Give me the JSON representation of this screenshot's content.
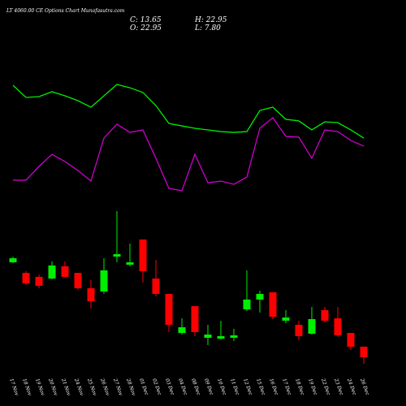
{
  "chart_data": {
    "type": "candlestick",
    "title": "LT 4060.00 CE Options Chart Munafasutra.com",
    "info": [
      "C: 13.65",
      "H: 22.95",
      "O: 22.95",
      "L: 7.80"
    ],
    "categories": [
      "17 Nov",
      "18 Nov",
      "19 Nov",
      "20 Nov",
      "21 Nov",
      "24 Nov",
      "25 Nov",
      "26 Nov",
      "27 Nov",
      "28 Nov",
      "01 Dec",
      "02 Dec",
      "03 Dec",
      "04 Dec",
      "08 Dec",
      "09 Dec",
      "10 Dec",
      "11 Dec",
      "12 Dec",
      "15 Dec",
      "16 Dec",
      "17 Dec",
      "18 Dec",
      "19 Dec",
      "22 Dec",
      "23 Dec",
      "24 Dec",
      "26 Dec"
    ],
    "open": [
      97.2,
      87.9,
      84.4,
      82.9,
      93.7,
      87.9,
      74.4,
      71.5,
      102.2,
      95.1,
      117.3,
      82.9,
      69.4,
      35.0,
      58.6,
      30.7,
      30.0,
      30.7,
      55.8,
      64.4,
      70.8,
      45.8,
      42.2,
      34.3,
      55.1,
      47.9,
      35.0,
      22.95
    ],
    "high": [
      102.2,
      89.4,
      86.5,
      98.0,
      98.0,
      87.9,
      81.5,
      100.8,
      142.3,
      113.7,
      117.3,
      99.4,
      69.4,
      47.9,
      58.6,
      42.2,
      45.8,
      38.6,
      90.1,
      72.2,
      70.8,
      55.1,
      45.8,
      57.9,
      57.9,
      57.9,
      35.0,
      22.95
    ],
    "low": [
      96.5,
      77.2,
      74.4,
      82.2,
      83.7,
      72.9,
      56.5,
      69.4,
      97.2,
      93.7,
      79.4,
      67.2,
      35.8,
      33.6,
      32.2,
      24.3,
      29.3,
      27.9,
      54.3,
      52.9,
      47.2,
      43.6,
      28.6,
      33.6,
      44.3,
      31.5,
      20.0,
      7.8
    ],
    "close": [
      100.8,
      78.7,
      76.5,
      94.4,
      84.4,
      74.4,
      62.9,
      90.1,
      104.4,
      97.2,
      89.4,
      69.4,
      42.2,
      40.0,
      35.8,
      33.6,
      32.2,
      32.9,
      64.4,
      69.4,
      49.3,
      48.6,
      32.2,
      47.2,
      45.8,
      32.9,
      22.9,
      13.65
    ],
    "up_color": "#00ee00",
    "down_color": "#ff0000",
    "lines": [
      {
        "color": "#00ee00",
        "values": [
          253.1,
          242.4,
          243.1,
          247.4,
          243.8,
          239.5,
          233.8,
          243.8,
          253.8,
          250.9,
          246.7,
          235.2,
          219.5,
          217.3,
          215.2,
          213.8,
          212.3,
          211.6,
          212.3,
          230.9,
          233.8,
          223.1,
          221.7,
          213.8,
          220.9,
          220.2,
          213.8,
          206.6
        ]
      },
      {
        "color": "#cc00cc",
        "values": [
          169.5,
          169.5,
          181.6,
          192.3,
          185.9,
          178.0,
          168.7,
          206.6,
          218.8,
          211.6,
          213.8,
          188.8,
          162.3,
          160.2,
          192.3,
          167.3,
          168.7,
          165.9,
          172.3,
          215.2,
          224.5,
          208.1,
          207.4,
          188.8,
          213.8,
          212.3,
          204.5,
          199.5
        ]
      }
    ],
    "ylim": [
      0,
      300
    ]
  }
}
